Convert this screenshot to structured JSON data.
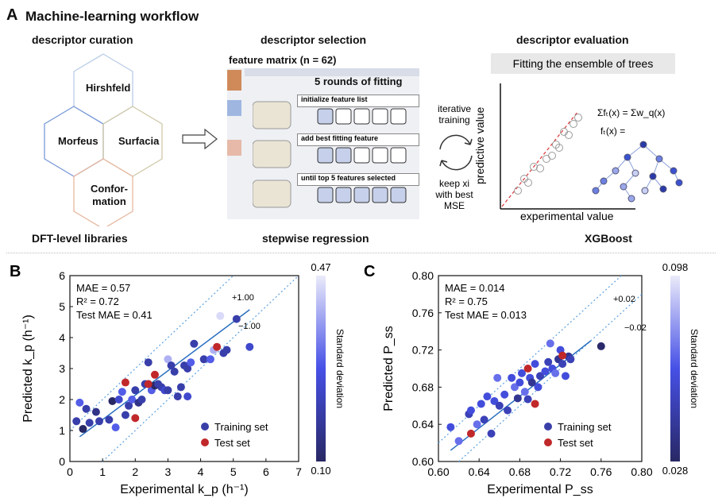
{
  "panelA": {
    "letter": "A",
    "title": "Machine-learning workflow",
    "curation": {
      "title": "descriptor curation",
      "hexes": [
        "Hirshfeld",
        "Morfeus",
        "Surfacia",
        "Confor-\nmation"
      ],
      "footer": "DFT-level libraries"
    },
    "selection": {
      "title": "descriptor selection",
      "matrix_label": "feature matrix (n = 62)",
      "rounds_label": "5 rounds of fitting",
      "steps": [
        "initialize feature list",
        "add best fitting feature",
        "until top 5 features selected"
      ],
      "footer": "stepwise regression"
    },
    "iteration": {
      "top": "iterative training",
      "bottom": "keep xi with best MSE"
    },
    "evaluation": {
      "title": "descriptor evaluation",
      "banner": "Fitting the ensemble of trees",
      "ylabel": "predictive value",
      "xlabel": "experimental value",
      "eq1": "Σfₜ(x) = Σw_q(x)",
      "eq2": "fₜ(x) =",
      "footer": "XGBoost"
    }
  },
  "chart_data": [
    {
      "panel": "B",
      "type": "scatter",
      "xlabel": "Experimental k_p (h⁻¹)",
      "ylabel": "Predicted k_p (h⁻¹)",
      "xlim": [
        0,
        7
      ],
      "ylim": [
        0,
        6
      ],
      "xticks": [
        0,
        1,
        2,
        3,
        4,
        5,
        6,
        7
      ],
      "yticks": [
        0,
        1,
        2,
        3,
        4,
        5,
        6
      ],
      "annotations": [
        "MAE = 0.57",
        "R² = 0.72",
        "Test MAE = 0.41"
      ],
      "band_labels": [
        "+1.00",
        "−1.00"
      ],
      "band": 1.0,
      "legend": [
        "Training set",
        "Test set"
      ],
      "colorbar": {
        "label": "Standard deviation",
        "min": 0.1,
        "max": 0.47
      },
      "train": [
        [
          0.2,
          1.3,
          0.2
        ],
        [
          0.3,
          1.9,
          0.3
        ],
        [
          0.4,
          1.05,
          0.1
        ],
        [
          0.5,
          1.7,
          0.2
        ],
        [
          0.6,
          1.25,
          0.2
        ],
        [
          0.8,
          1.6,
          0.15
        ],
        [
          0.9,
          1.3,
          0.2
        ],
        [
          1.2,
          1.35,
          0.2
        ],
        [
          1.3,
          1.95,
          0.1
        ],
        [
          1.4,
          1.1,
          0.3
        ],
        [
          1.5,
          2.0,
          0.25
        ],
        [
          1.6,
          2.25,
          0.3
        ],
        [
          1.7,
          1.5,
          0.2
        ],
        [
          1.8,
          1.8,
          0.2
        ],
        [
          1.9,
          2.0,
          0.3
        ],
        [
          2.0,
          2.3,
          0.2
        ],
        [
          2.1,
          1.9,
          0.15
        ],
        [
          2.2,
          2.0,
          0.2
        ],
        [
          2.3,
          2.5,
          0.2
        ],
        [
          2.4,
          2.5,
          0.25
        ],
        [
          2.4,
          3.2,
          0.2
        ],
        [
          2.5,
          2.3,
          0.3
        ],
        [
          2.6,
          2.45,
          0.1
        ],
        [
          2.7,
          2.5,
          0.2
        ],
        [
          2.8,
          2.4,
          0.2
        ],
        [
          2.9,
          2.3,
          0.25
        ],
        [
          3.0,
          2.3,
          0.2
        ],
        [
          3.0,
          3.3,
          0.4
        ],
        [
          3.1,
          3.1,
          0.2
        ],
        [
          3.2,
          2.9,
          0.2
        ],
        [
          3.3,
          2.1,
          0.2
        ],
        [
          3.4,
          2.4,
          0.2
        ],
        [
          3.5,
          3.1,
          0.2
        ],
        [
          3.6,
          2.1,
          0.25
        ],
        [
          3.6,
          3.0,
          0.2
        ],
        [
          3.7,
          3.2,
          0.3
        ],
        [
          3.8,
          3.8,
          0.2
        ],
        [
          4.1,
          3.3,
          0.2
        ],
        [
          4.3,
          3.3,
          0.3
        ],
        [
          4.4,
          3.6,
          0.4
        ],
        [
          4.6,
          4.7,
          0.45
        ],
        [
          4.7,
          3.5,
          0.2
        ],
        [
          4.8,
          3.6,
          0.2
        ],
        [
          5.1,
          4.6,
          0.2
        ],
        [
          5.5,
          3.7,
          0.25
        ]
      ],
      "test": [
        [
          1.7,
          2.55
        ],
        [
          2.0,
          1.4
        ],
        [
          2.4,
          2.5
        ],
        [
          2.6,
          2.8
        ],
        [
          4.5,
          3.7
        ]
      ]
    },
    {
      "panel": "C",
      "type": "scatter",
      "xlabel": "Experimental P_ss",
      "ylabel": "Predicted P_ss",
      "xlim": [
        0.6,
        0.8
      ],
      "ylim": [
        0.6,
        0.8
      ],
      "xticks": [
        0.6,
        0.64,
        0.68,
        0.72,
        0.76,
        0.8
      ],
      "yticks": [
        0.6,
        0.64,
        0.68,
        0.72,
        0.76,
        0.8
      ],
      "annotations": [
        "MAE = 0.014",
        "R² = 0.75",
        "Test MAE = 0.013"
      ],
      "band_labels": [
        "+0.02",
        "−0.02"
      ],
      "band": 0.02,
      "legend": [
        "Training set",
        "Test set"
      ],
      "colorbar": {
        "label": "Standard deviation",
        "min": 0.028,
        "max": 0.098
      },
      "train": [
        [
          0.612,
          0.637,
          0.06
        ],
        [
          0.62,
          0.622,
          0.07
        ],
        [
          0.63,
          0.651,
          0.05
        ],
        [
          0.632,
          0.655,
          0.06
        ],
        [
          0.638,
          0.64,
          0.07
        ],
        [
          0.642,
          0.662,
          0.06
        ],
        [
          0.645,
          0.645,
          0.05
        ],
        [
          0.648,
          0.67,
          0.06
        ],
        [
          0.652,
          0.63,
          0.05
        ],
        [
          0.655,
          0.665,
          0.06
        ],
        [
          0.658,
          0.69,
          0.07
        ],
        [
          0.66,
          0.66,
          0.05
        ],
        [
          0.665,
          0.672,
          0.06
        ],
        [
          0.668,
          0.655,
          0.05
        ],
        [
          0.672,
          0.69,
          0.06
        ],
        [
          0.675,
          0.68,
          0.07
        ],
        [
          0.678,
          0.668,
          0.04
        ],
        [
          0.68,
          0.685,
          0.06
        ],
        [
          0.682,
          0.695,
          0.06
        ],
        [
          0.685,
          0.675,
          0.07
        ],
        [
          0.688,
          0.667,
          0.05
        ],
        [
          0.69,
          0.69,
          0.06
        ],
        [
          0.692,
          0.685,
          0.04
        ],
        [
          0.695,
          0.705,
          0.06
        ],
        [
          0.698,
          0.68,
          0.06
        ],
        [
          0.7,
          0.692,
          0.05
        ],
        [
          0.705,
          0.697,
          0.06
        ],
        [
          0.708,
          0.707,
          0.05
        ],
        [
          0.71,
          0.727,
          0.07
        ],
        [
          0.712,
          0.7,
          0.06
        ],
        [
          0.715,
          0.695,
          0.07
        ],
        [
          0.718,
          0.71,
          0.04
        ],
        [
          0.72,
          0.72,
          0.06
        ],
        [
          0.722,
          0.705,
          0.05
        ],
        [
          0.725,
          0.692,
          0.06
        ],
        [
          0.728,
          0.713,
          0.04
        ],
        [
          0.73,
          0.71,
          0.05
        ],
        [
          0.76,
          0.724,
          0.03
        ]
      ],
      "test": [
        [
          0.632,
          0.63
        ],
        [
          0.688,
          0.7
        ],
        [
          0.695,
          0.662
        ],
        [
          0.722,
          0.714
        ]
      ]
    }
  ]
}
